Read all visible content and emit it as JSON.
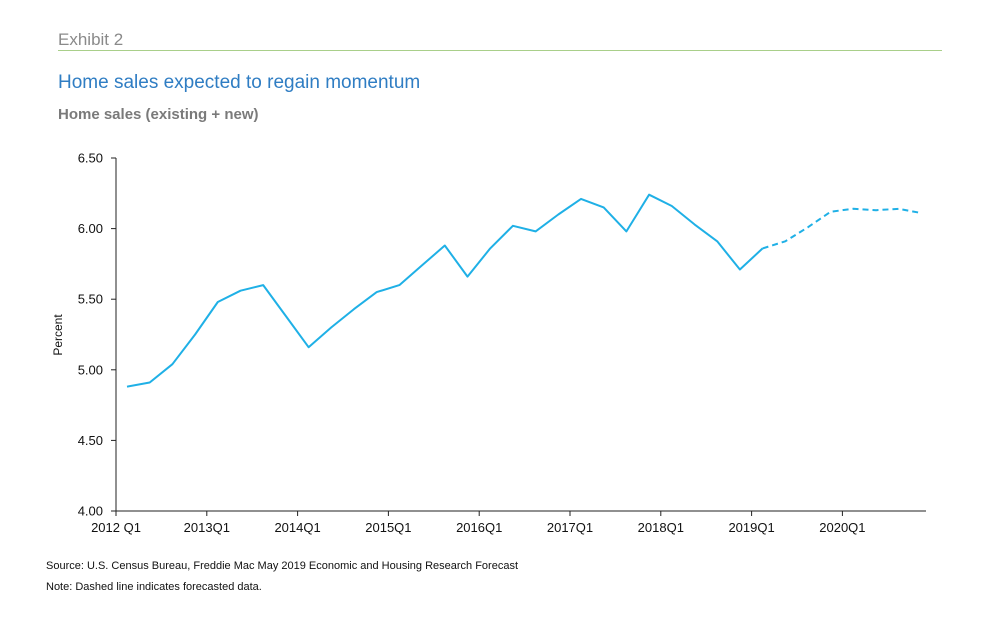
{
  "header": {
    "exhibit": "Exhibit 2",
    "title": "Home sales expected to regain momentum",
    "subtitle": "Home sales (existing + new)"
  },
  "footer": {
    "source": "Source: U.S. Census Bureau, Freddie Mac May 2019 Economic and Housing Research Forecast",
    "note": "Note: Dashed line indicates forecasted data."
  },
  "chart_data": {
    "type": "line",
    "title": "Home sales expected to regain momentum",
    "subtitle": "Home sales (existing + new)",
    "ylabel": "Percent",
    "xlabel": "",
    "ylim": [
      4.0,
      6.5
    ],
    "yticks": [
      "4.00",
      "4.50",
      "5.00",
      "5.50",
      "6.00",
      "6.50"
    ],
    "xticks": [
      "2012 Q1",
      "2013Q1",
      "2014Q1",
      "2015Q1",
      "2016Q1",
      "2017Q1",
      "2018Q1",
      "2019Q1",
      "2020Q1"
    ],
    "grid": false,
    "line_color": "#1fb0e6",
    "x": [
      "2012Q1",
      "2012Q2",
      "2012Q3",
      "2012Q4",
      "2013Q1",
      "2013Q2",
      "2013Q3",
      "2013Q4",
      "2014Q1",
      "2014Q2",
      "2014Q3",
      "2014Q4",
      "2015Q1",
      "2015Q2",
      "2015Q3",
      "2015Q4",
      "2016Q1",
      "2016Q2",
      "2016Q3",
      "2016Q4",
      "2017Q1",
      "2017Q2",
      "2017Q3",
      "2017Q4",
      "2018Q1",
      "2018Q2",
      "2018Q3",
      "2018Q4",
      "2019Q1",
      "2019Q2",
      "2019Q3",
      "2019Q4",
      "2020Q1",
      "2020Q2",
      "2020Q3",
      "2020Q4"
    ],
    "series": [
      {
        "style": "solid",
        "values": [
          4.88,
          4.91,
          5.04,
          5.25,
          5.48,
          5.56,
          5.6,
          5.38,
          5.16,
          5.3,
          5.43,
          5.55,
          5.6,
          5.74,
          5.88,
          5.66,
          5.86,
          6.02,
          5.98,
          6.1,
          6.21,
          6.15,
          5.98,
          6.24,
          6.16,
          6.03,
          5.91,
          5.71,
          5.86,
          null,
          null,
          null,
          null,
          null,
          null,
          null
        ]
      },
      {
        "style": "dashed",
        "values": [
          null,
          null,
          null,
          null,
          null,
          null,
          null,
          null,
          null,
          null,
          null,
          null,
          null,
          null,
          null,
          null,
          null,
          null,
          null,
          null,
          null,
          null,
          null,
          null,
          null,
          null,
          null,
          null,
          5.86,
          5.91,
          6.01,
          6.12,
          6.14,
          6.13,
          6.14,
          6.11
        ]
      }
    ]
  }
}
